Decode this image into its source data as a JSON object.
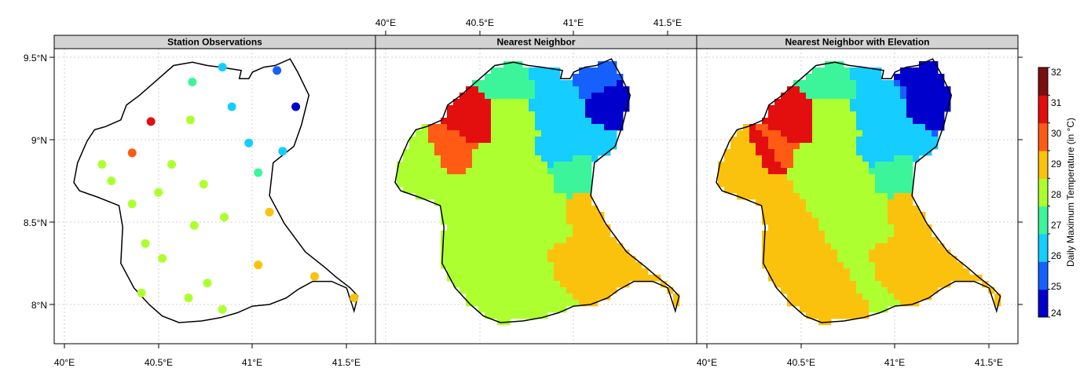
{
  "panels": [
    {
      "key": "obs",
      "title": "Station Observations"
    },
    {
      "key": "nn",
      "title": "Nearest Neighbor"
    },
    {
      "key": "nne",
      "title": "Nearest Neighbor with Elevation"
    }
  ],
  "axes": {
    "bottom_ticks": [
      "40°E",
      "40.5°E",
      "41°E",
      "41.5°E"
    ],
    "top_ticks": [
      "40°E",
      "40.5°E",
      "41°E",
      "41.5°E"
    ],
    "left_ticks": [
      "9.5°N",
      "9°N",
      "8.5°N",
      "8°N"
    ]
  },
  "colorbar": {
    "title": "Daily Maximum Temperature (in °C)",
    "ticks": [
      "32",
      "31",
      "30",
      "29",
      "28",
      "27",
      "26",
      "25",
      "24"
    ],
    "colors": [
      "#0000cd",
      "#1560ff",
      "#16cdff",
      "#3cf59b",
      "#adff2f",
      "#fbc20d",
      "#ff5b14",
      "#e30e0e",
      "#7a0f0f"
    ]
  },
  "map_data": {
    "region_outline": [
      [
        40.16,
        9.06
      ],
      [
        40.22,
        9.08
      ],
      [
        40.3,
        9.12
      ],
      [
        40.33,
        9.21
      ],
      [
        40.4,
        9.27
      ],
      [
        40.5,
        9.37
      ],
      [
        40.58,
        9.45
      ],
      [
        40.68,
        9.47
      ],
      [
        40.76,
        9.45
      ],
      [
        40.83,
        9.44
      ],
      [
        40.94,
        9.42
      ],
      [
        40.93,
        9.37
      ],
      [
        40.98,
        9.37
      ],
      [
        41.0,
        9.41
      ],
      [
        41.06,
        9.44
      ],
      [
        41.12,
        9.45
      ],
      [
        41.2,
        9.49
      ],
      [
        41.24,
        9.41
      ],
      [
        41.3,
        9.27
      ],
      [
        41.26,
        9.09
      ],
      [
        41.22,
        8.96
      ],
      [
        41.11,
        8.86
      ],
      [
        41.09,
        8.66
      ],
      [
        41.17,
        8.49
      ],
      [
        41.28,
        8.32
      ],
      [
        41.39,
        8.22
      ],
      [
        41.44,
        8.17
      ],
      [
        41.52,
        8.1
      ],
      [
        41.56,
        8.05
      ],
      [
        41.54,
        7.96
      ],
      [
        41.5,
        8.1
      ],
      [
        41.42,
        8.14
      ],
      [
        41.32,
        8.14
      ],
      [
        41.24,
        8.09
      ],
      [
        41.18,
        8.04
      ],
      [
        41.09,
        8.0
      ],
      [
        41.0,
        7.99
      ],
      [
        40.92,
        7.95
      ],
      [
        40.83,
        7.92
      ],
      [
        40.73,
        7.9
      ],
      [
        40.61,
        7.89
      ],
      [
        40.52,
        7.93
      ],
      [
        40.45,
        8.0
      ],
      [
        40.37,
        8.1
      ],
      [
        40.3,
        8.25
      ],
      [
        40.31,
        8.47
      ],
      [
        40.29,
        8.6
      ],
      [
        40.18,
        8.65
      ],
      [
        40.08,
        8.69
      ],
      [
        40.05,
        8.74
      ],
      [
        40.07,
        8.86
      ],
      [
        40.12,
        8.99
      ]
    ],
    "stations": [
      {
        "lon": 40.46,
        "lat": 9.11,
        "value": 31
      },
      {
        "lon": 40.36,
        "lat": 8.92,
        "value": 30.5
      },
      {
        "lon": 40.68,
        "lat": 9.35,
        "value": 27.5
      },
      {
        "lon": 40.84,
        "lat": 9.44,
        "value": 26.5
      },
      {
        "lon": 41.13,
        "lat": 9.42,
        "value": 25.5
      },
      {
        "lon": 41.23,
        "lat": 9.2,
        "value": 24.5
      },
      {
        "lon": 40.89,
        "lat": 9.2,
        "value": 26.5
      },
      {
        "lon": 40.67,
        "lat": 9.12,
        "value": 28.5
      },
      {
        "lon": 40.98,
        "lat": 8.98,
        "value": 26.5
      },
      {
        "lon": 41.16,
        "lat": 8.93,
        "value": 26.5
      },
      {
        "lon": 40.2,
        "lat": 8.85,
        "value": 28.5
      },
      {
        "lon": 40.57,
        "lat": 8.85,
        "value": 28.5
      },
      {
        "lon": 40.25,
        "lat": 8.75,
        "value": 28.5
      },
      {
        "lon": 41.03,
        "lat": 8.8,
        "value": 27.5
      },
      {
        "lon": 40.74,
        "lat": 8.73,
        "value": 28.5
      },
      {
        "lon": 40.5,
        "lat": 8.68,
        "value": 28.5
      },
      {
        "lon": 40.36,
        "lat": 8.61,
        "value": 28.5
      },
      {
        "lon": 41.09,
        "lat": 8.56,
        "value": 29.5
      },
      {
        "lon": 40.85,
        "lat": 8.53,
        "value": 28.5
      },
      {
        "lon": 40.69,
        "lat": 8.48,
        "value": 28.5
      },
      {
        "lon": 40.43,
        "lat": 8.37,
        "value": 28.5
      },
      {
        "lon": 40.52,
        "lat": 8.28,
        "value": 28.5
      },
      {
        "lon": 41.03,
        "lat": 8.24,
        "value": 29.5
      },
      {
        "lon": 41.33,
        "lat": 8.17,
        "value": 29.5
      },
      {
        "lon": 40.76,
        "lat": 8.13,
        "value": 28.5
      },
      {
        "lon": 40.41,
        "lat": 8.07,
        "value": 28.5
      },
      {
        "lon": 40.66,
        "lat": 8.04,
        "value": 28.5
      },
      {
        "lon": 41.54,
        "lat": 8.04,
        "value": 29.5
      },
      {
        "lon": 40.84,
        "lat": 7.97,
        "value": 28.5
      }
    ]
  }
}
